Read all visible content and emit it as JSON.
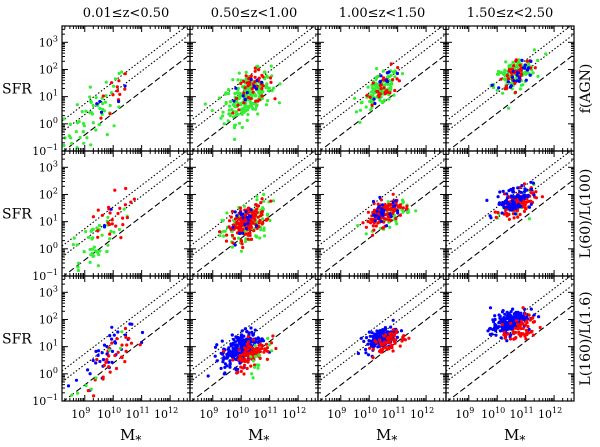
{
  "chart_data": {
    "type": "scatter",
    "layout": "3x4 panel grid",
    "col_titles": [
      "0.01≤z<0.50",
      "0.50≤z<1.00",
      "1.00≤z<1.50",
      "1.50≤z<2.50"
    ],
    "row_labels": [
      "f(AGN)",
      "L(60)/L(100)",
      "L(160)/L(1.6)"
    ],
    "ylabel": "SFR",
    "xlabel": "M*",
    "xlabel_main": "M",
    "xlabel_sub": "*",
    "x_scale": "log",
    "y_scale": "log",
    "xlim_log": [
      8.2,
      12.7
    ],
    "ylim_log": [
      -1.0,
      3.6
    ],
    "y_tick_labels": [
      {
        "base": "10",
        "exp": "3",
        "log": 3
      },
      {
        "base": "10",
        "exp": "2",
        "log": 2
      },
      {
        "base": "10",
        "exp": "1",
        "log": 1
      },
      {
        "base": "10",
        "exp": "0",
        "log": 0
      },
      {
        "base": "10",
        "exp": "−1",
        "log": -1
      }
    ],
    "x_tick_labels": [
      {
        "base": "10",
        "exp": "9",
        "log": 9
      },
      {
        "base": "10",
        "exp": "10",
        "log": 10
      },
      {
        "base": "10",
        "exp": "11",
        "log": 11
      },
      {
        "base": "10",
        "exp": "12",
        "log": 12
      }
    ],
    "reference_lines": [
      {
        "style": "dashed",
        "description": "main sequence",
        "points_log": [
          [
            8.2,
            -1.05
          ],
          [
            12.7,
            2.55
          ]
        ]
      },
      {
        "style": "dotted",
        "description": "main sequence x3",
        "points_log": [
          [
            8.2,
            -0.3
          ],
          [
            12.7,
            3.3
          ]
        ]
      },
      {
        "style": "dotted",
        "description": "main sequence x10",
        "points_log": [
          [
            8.2,
            0.1
          ],
          [
            12.7,
            3.7
          ]
        ]
      }
    ],
    "colors": {
      "red": "#ff0000",
      "blue": "#0000ff",
      "green": "#33ee33"
    },
    "panels": [
      {
        "row": 0,
        "col": 0,
        "series": [
          {
            "color": "green",
            "count": 55,
            "x_mean": 9.4,
            "x_sd": 0.55,
            "y_mean": 0.4,
            "y_sd": 0.55,
            "slope": 0.8
          },
          {
            "color": "red",
            "count": 12,
            "x_mean": 9.9,
            "x_sd": 0.35,
            "y_mean": 0.9,
            "y_sd": 0.35,
            "slope": 0.8
          },
          {
            "color": "blue",
            "count": 5,
            "x_mean": 9.8,
            "x_sd": 0.35,
            "y_mean": 0.8,
            "y_sd": 0.3,
            "slope": 0.8
          }
        ]
      },
      {
        "row": 0,
        "col": 1,
        "series": [
          {
            "color": "green",
            "count": 220,
            "x_mean": 10.2,
            "x_sd": 0.42,
            "y_mean": 1.0,
            "y_sd": 0.4,
            "slope": 0.5
          },
          {
            "color": "red",
            "count": 45,
            "x_mean": 10.4,
            "x_sd": 0.35,
            "y_mean": 1.3,
            "y_sd": 0.3,
            "slope": 0.5
          },
          {
            "color": "blue",
            "count": 12,
            "x_mean": 10.3,
            "x_sd": 0.35,
            "y_mean": 1.3,
            "y_sd": 0.3,
            "slope": 0.5
          }
        ]
      },
      {
        "row": 0,
        "col": 2,
        "series": [
          {
            "color": "green",
            "count": 120,
            "x_mean": 10.4,
            "x_sd": 0.32,
            "y_mean": 1.2,
            "y_sd": 0.28,
            "slope": 0.6
          },
          {
            "color": "red",
            "count": 30,
            "x_mean": 10.6,
            "x_sd": 0.3,
            "y_mean": 1.5,
            "y_sd": 0.25,
            "slope": 0.6
          },
          {
            "color": "blue",
            "count": 10,
            "x_mean": 10.6,
            "x_sd": 0.3,
            "y_mean": 1.5,
            "y_sd": 0.25,
            "slope": 0.6
          }
        ]
      },
      {
        "row": 0,
        "col": 3,
        "series": [
          {
            "color": "green",
            "count": 130,
            "x_mean": 10.6,
            "x_sd": 0.35,
            "y_mean": 1.8,
            "y_sd": 0.28,
            "slope": 0.5
          },
          {
            "color": "red",
            "count": 40,
            "x_mean": 10.7,
            "x_sd": 0.3,
            "y_mean": 1.9,
            "y_sd": 0.25,
            "slope": 0.5
          },
          {
            "color": "blue",
            "count": 25,
            "x_mean": 10.7,
            "x_sd": 0.3,
            "y_mean": 1.8,
            "y_sd": 0.25,
            "slope": 0.5
          }
        ]
      },
      {
        "row": 1,
        "col": 0,
        "series": [
          {
            "color": "green",
            "count": 50,
            "x_mean": 9.3,
            "x_sd": 0.5,
            "y_mean": 0.2,
            "y_sd": 0.5,
            "slope": 0.8
          },
          {
            "color": "red",
            "count": 25,
            "x_mean": 9.8,
            "x_sd": 0.4,
            "y_mean": 0.9,
            "y_sd": 0.45,
            "slope": 0.8
          },
          {
            "color": "blue",
            "count": 3,
            "x_mean": 9.8,
            "x_sd": 0.3,
            "y_mean": 0.9,
            "y_sd": 0.3,
            "slope": 0.8
          }
        ]
      },
      {
        "row": 1,
        "col": 1,
        "series": [
          {
            "color": "green",
            "count": 100,
            "x_mean": 10.2,
            "x_sd": 0.42,
            "y_mean": 0.9,
            "y_sd": 0.4,
            "slope": 0.5
          },
          {
            "color": "red",
            "count": 160,
            "x_mean": 10.2,
            "x_sd": 0.32,
            "y_mean": 1.0,
            "y_sd": 0.28,
            "slope": 0.5
          },
          {
            "color": "blue",
            "count": 20,
            "x_mean": 10.2,
            "x_sd": 0.3,
            "y_mean": 1.05,
            "y_sd": 0.25,
            "slope": 0.5
          }
        ]
      },
      {
        "row": 1,
        "col": 2,
        "series": [
          {
            "color": "green",
            "count": 50,
            "x_mean": 10.8,
            "x_sd": 0.32,
            "y_mean": 1.3,
            "y_sd": 0.22,
            "slope": 0.4
          },
          {
            "color": "red",
            "count": 120,
            "x_mean": 10.5,
            "x_sd": 0.3,
            "y_mean": 1.3,
            "y_sd": 0.22,
            "slope": 0.4
          },
          {
            "color": "blue",
            "count": 30,
            "x_mean": 10.5,
            "x_sd": 0.3,
            "y_mean": 1.35,
            "y_sd": 0.22,
            "slope": 0.4
          }
        ]
      },
      {
        "row": 1,
        "col": 3,
        "series": [
          {
            "color": "green",
            "count": 20,
            "x_mean": 10.8,
            "x_sd": 0.3,
            "y_mean": 1.6,
            "y_sd": 0.25,
            "slope": 0.4
          },
          {
            "color": "red",
            "count": 110,
            "x_mean": 10.7,
            "x_sd": 0.3,
            "y_mean": 1.65,
            "y_sd": 0.22,
            "slope": 0.4
          },
          {
            "color": "blue",
            "count": 90,
            "x_mean": 10.6,
            "x_sd": 0.32,
            "y_mean": 1.85,
            "y_sd": 0.25,
            "slope": 0.4
          }
        ]
      },
      {
        "row": 2,
        "col": 0,
        "series": [
          {
            "color": "blue",
            "count": 40,
            "x_mean": 9.6,
            "x_sd": 0.5,
            "y_mean": 0.5,
            "y_sd": 0.45,
            "slope": 0.8
          },
          {
            "color": "red",
            "count": 30,
            "x_mean": 9.9,
            "x_sd": 0.4,
            "y_mean": 0.4,
            "y_sd": 0.4,
            "slope": 0.8
          },
          {
            "color": "green",
            "count": 8,
            "x_mean": 9.5,
            "x_sd": 0.4,
            "y_mean": 0.1,
            "y_sd": 0.4,
            "slope": 0.8
          }
        ]
      },
      {
        "row": 2,
        "col": 1,
        "series": [
          {
            "color": "blue",
            "count": 230,
            "x_mean": 10.0,
            "x_sd": 0.35,
            "y_mean": 0.95,
            "y_sd": 0.3,
            "slope": 0.5
          },
          {
            "color": "red",
            "count": 90,
            "x_mean": 10.4,
            "x_sd": 0.3,
            "y_mean": 0.75,
            "y_sd": 0.28,
            "slope": 0.5
          },
          {
            "color": "green",
            "count": 15,
            "x_mean": 10.6,
            "x_sd": 0.3,
            "y_mean": 0.7,
            "y_sd": 0.28,
            "slope": 0.5
          }
        ]
      },
      {
        "row": 2,
        "col": 2,
        "series": [
          {
            "color": "blue",
            "count": 140,
            "x_mean": 10.4,
            "x_sd": 0.28,
            "y_mean": 1.3,
            "y_sd": 0.18,
            "slope": 0.4
          },
          {
            "color": "red",
            "count": 60,
            "x_mean": 10.7,
            "x_sd": 0.28,
            "y_mean": 1.15,
            "y_sd": 0.2,
            "slope": 0.4
          }
        ]
      },
      {
        "row": 2,
        "col": 3,
        "series": [
          {
            "color": "blue",
            "count": 180,
            "x_mean": 10.4,
            "x_sd": 0.32,
            "y_mean": 1.9,
            "y_sd": 0.22,
            "slope": 0.4
          },
          {
            "color": "red",
            "count": 60,
            "x_mean": 10.8,
            "x_sd": 0.3,
            "y_mean": 1.6,
            "y_sd": 0.22,
            "slope": 0.4
          }
        ]
      }
    ]
  }
}
